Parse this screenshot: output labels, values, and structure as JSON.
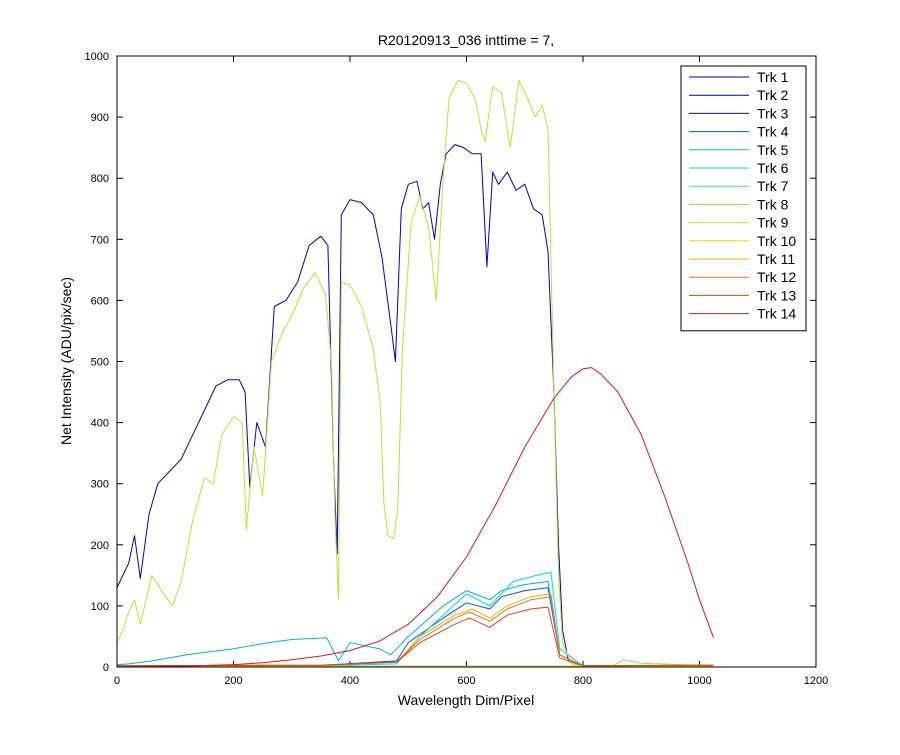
{
  "chart_data": {
    "type": "line",
    "title": "R20120913_036 inttime = 7,",
    "xlabel": "Wavelength Dim/Pixel",
    "ylabel": "Net Intensity (ADU/pix/sec)",
    "xlim": [
      0,
      1200
    ],
    "ylim": [
      0,
      1000
    ],
    "xticks": [
      0,
      200,
      400,
      600,
      800,
      1000,
      1200
    ],
    "yticks": [
      0,
      100,
      200,
      300,
      400,
      500,
      600,
      700,
      800,
      900,
      1000
    ],
    "legend_position": "top-right",
    "series": [
      {
        "name": "Trk 1",
        "color": "#00008F",
        "points": [
          [
            0,
            0
          ],
          [
            1024,
            0
          ]
        ]
      },
      {
        "name": "Trk 2",
        "color": "#0000BF",
        "points": [
          [
            0,
            130
          ],
          [
            10,
            150
          ],
          [
            20,
            170
          ],
          [
            30,
            215
          ],
          [
            40,
            145
          ],
          [
            55,
            250
          ],
          [
            70,
            300
          ],
          [
            90,
            320
          ],
          [
            110,
            340
          ],
          [
            130,
            380
          ],
          [
            150,
            420
          ],
          [
            170,
            460
          ],
          [
            190,
            470
          ],
          [
            210,
            470
          ],
          [
            220,
            450
          ],
          [
            228,
            295
          ],
          [
            240,
            400
          ],
          [
            255,
            360
          ],
          [
            270,
            590
          ],
          [
            290,
            600
          ],
          [
            310,
            630
          ],
          [
            330,
            690
          ],
          [
            350,
            705
          ],
          [
            362,
            690
          ],
          [
            372,
            330
          ],
          [
            378,
            185
          ],
          [
            385,
            740
          ],
          [
            400,
            765
          ],
          [
            420,
            760
          ],
          [
            440,
            740
          ],
          [
            455,
            670
          ],
          [
            470,
            560
          ],
          [
            478,
            500
          ],
          [
            488,
            750
          ],
          [
            500,
            790
          ],
          [
            515,
            795
          ],
          [
            525,
            750
          ],
          [
            535,
            760
          ],
          [
            545,
            700
          ],
          [
            555,
            790
          ],
          [
            565,
            840
          ],
          [
            580,
            855
          ],
          [
            595,
            850
          ],
          [
            610,
            840
          ],
          [
            625,
            840
          ],
          [
            635,
            655
          ],
          [
            645,
            810
          ],
          [
            655,
            790
          ],
          [
            670,
            810
          ],
          [
            685,
            780
          ],
          [
            700,
            790
          ],
          [
            715,
            750
          ],
          [
            730,
            740
          ],
          [
            740,
            680
          ],
          [
            750,
            450
          ],
          [
            758,
            200
          ],
          [
            765,
            60
          ],
          [
            775,
            10
          ],
          [
            800,
            2
          ],
          [
            1024,
            2
          ]
        ]
      },
      {
        "name": "Trk 3",
        "color": "#0000FF",
        "points": [
          [
            0,
            1
          ],
          [
            1024,
            1
          ]
        ]
      },
      {
        "name": "Trk 4",
        "color": "#0050FF",
        "points": [
          [
            0,
            2
          ],
          [
            350,
            3
          ],
          [
            480,
            10
          ],
          [
            500,
            40
          ],
          [
            560,
            80
          ],
          [
            600,
            105
          ],
          [
            640,
            95
          ],
          [
            660,
            115
          ],
          [
            700,
            125
          ],
          [
            740,
            130
          ],
          [
            760,
            20
          ],
          [
            800,
            2
          ],
          [
            1024,
            2
          ]
        ]
      },
      {
        "name": "Trk 5",
        "color": "#00B0E8",
        "points": [
          [
            0,
            4
          ],
          [
            20,
            5
          ],
          [
            60,
            10
          ],
          [
            120,
            20
          ],
          [
            200,
            30
          ],
          [
            260,
            40
          ],
          [
            300,
            45
          ],
          [
            360,
            48
          ],
          [
            380,
            10
          ],
          [
            400,
            40
          ],
          [
            450,
            30
          ],
          [
            470,
            20
          ],
          [
            500,
            50
          ],
          [
            560,
            100
          ],
          [
            600,
            125
          ],
          [
            640,
            110
          ],
          [
            660,
            125
          ],
          [
            700,
            135
          ],
          [
            740,
            140
          ],
          [
            760,
            20
          ],
          [
            800,
            2
          ],
          [
            1024,
            2
          ]
        ]
      },
      {
        "name": "Trk 6",
        "color": "#00D8E8",
        "points": [
          [
            0,
            1
          ],
          [
            350,
            2
          ],
          [
            480,
            5
          ],
          [
            520,
            50
          ],
          [
            600,
            120
          ],
          [
            640,
            100
          ],
          [
            680,
            140
          ],
          [
            720,
            150
          ],
          [
            745,
            155
          ],
          [
            760,
            30
          ],
          [
            800,
            2
          ],
          [
            1024,
            2
          ]
        ]
      },
      {
        "name": "Trk 7",
        "color": "#30E0C0",
        "points": [
          [
            0,
            1
          ],
          [
            1024,
            1
          ]
        ]
      },
      {
        "name": "Trk 8",
        "color": "#80E060",
        "points": [
          [
            0,
            1
          ],
          [
            850,
            1
          ],
          [
            870,
            12
          ],
          [
            900,
            6
          ],
          [
            1024,
            2
          ]
        ]
      },
      {
        "name": "Trk 9",
        "color": "#B0E830",
        "points": [
          [
            0,
            40
          ],
          [
            10,
            60
          ],
          [
            20,
            90
          ],
          [
            30,
            110
          ],
          [
            40,
            70
          ],
          [
            60,
            150
          ],
          [
            80,
            120
          ],
          [
            95,
            100
          ],
          [
            110,
            140
          ],
          [
            130,
            240
          ],
          [
            150,
            310
          ],
          [
            165,
            300
          ],
          [
            180,
            380
          ],
          [
            200,
            410
          ],
          [
            215,
            400
          ],
          [
            222,
            225
          ],
          [
            235,
            360
          ],
          [
            250,
            280
          ],
          [
            265,
            500
          ],
          [
            285,
            550
          ],
          [
            300,
            575
          ],
          [
            320,
            620
          ],
          [
            340,
            645
          ],
          [
            358,
            610
          ],
          [
            368,
            500
          ],
          [
            374,
            250
          ],
          [
            380,
            110
          ],
          [
            385,
            630
          ],
          [
            400,
            625
          ],
          [
            420,
            590
          ],
          [
            440,
            520
          ],
          [
            452,
            430
          ],
          [
            458,
            270
          ],
          [
            465,
            215
          ],
          [
            475,
            210
          ],
          [
            482,
            260
          ],
          [
            490,
            520
          ],
          [
            505,
            730
          ],
          [
            520,
            770
          ],
          [
            535,
            720
          ],
          [
            548,
            600
          ],
          [
            560,
            800
          ],
          [
            570,
            930
          ],
          [
            585,
            960
          ],
          [
            600,
            955
          ],
          [
            615,
            930
          ],
          [
            625,
            880
          ],
          [
            632,
            860
          ],
          [
            645,
            950
          ],
          [
            660,
            940
          ],
          [
            675,
            850
          ],
          [
            690,
            960
          ],
          [
            705,
            930
          ],
          [
            718,
            900
          ],
          [
            730,
            920
          ],
          [
            740,
            880
          ],
          [
            750,
            450
          ],
          [
            758,
            150
          ],
          [
            765,
            40
          ],
          [
            780,
            5
          ],
          [
            800,
            2
          ],
          [
            1024,
            2
          ]
        ]
      },
      {
        "name": "Trk 10",
        "color": "#E0E000",
        "points": [
          [
            0,
            1
          ],
          [
            1024,
            1
          ]
        ]
      },
      {
        "name": "Trk 11",
        "color": "#F0B000",
        "points": [
          [
            0,
            2
          ],
          [
            350,
            3
          ],
          [
            480,
            8
          ],
          [
            520,
            50
          ],
          [
            580,
            85
          ],
          [
            610,
            95
          ],
          [
            640,
            80
          ],
          [
            670,
            100
          ],
          [
            710,
            115
          ],
          [
            745,
            120
          ],
          [
            760,
            20
          ],
          [
            800,
            2
          ],
          [
            1024,
            3
          ]
        ]
      },
      {
        "name": "Trk 12",
        "color": "#F07020",
        "points": [
          [
            0,
            2
          ],
          [
            350,
            3
          ],
          [
            480,
            8
          ],
          [
            520,
            45
          ],
          [
            580,
            80
          ],
          [
            605,
            90
          ],
          [
            640,
            75
          ],
          [
            670,
            95
          ],
          [
            710,
            110
          ],
          [
            745,
            115
          ],
          [
            760,
            20
          ],
          [
            800,
            2
          ],
          [
            1024,
            3
          ]
        ]
      },
      {
        "name": "Trk 13",
        "color": "#E84010",
        "points": [
          [
            0,
            2
          ],
          [
            350,
            3
          ],
          [
            480,
            8
          ],
          [
            520,
            40
          ],
          [
            580,
            70
          ],
          [
            605,
            80
          ],
          [
            640,
            65
          ],
          [
            670,
            85
          ],
          [
            710,
            95
          ],
          [
            740,
            98
          ],
          [
            760,
            15
          ],
          [
            800,
            2
          ],
          [
            1024,
            3
          ]
        ]
      },
      {
        "name": "Trk 14",
        "color": "#D81818",
        "points": [
          [
            0,
            0
          ],
          [
            100,
            1
          ],
          [
            200,
            4
          ],
          [
            250,
            7
          ],
          [
            300,
            12
          ],
          [
            350,
            18
          ],
          [
            400,
            27
          ],
          [
            450,
            42
          ],
          [
            500,
            70
          ],
          [
            550,
            115
          ],
          [
            600,
            180
          ],
          [
            650,
            265
          ],
          [
            700,
            360
          ],
          [
            750,
            440
          ],
          [
            780,
            475
          ],
          [
            800,
            488
          ],
          [
            815,
            490
          ],
          [
            830,
            480
          ],
          [
            860,
            450
          ],
          [
            900,
            380
          ],
          [
            940,
            280
          ],
          [
            980,
            170
          ],
          [
            1000,
            110
          ],
          [
            1024,
            48
          ]
        ]
      }
    ]
  }
}
